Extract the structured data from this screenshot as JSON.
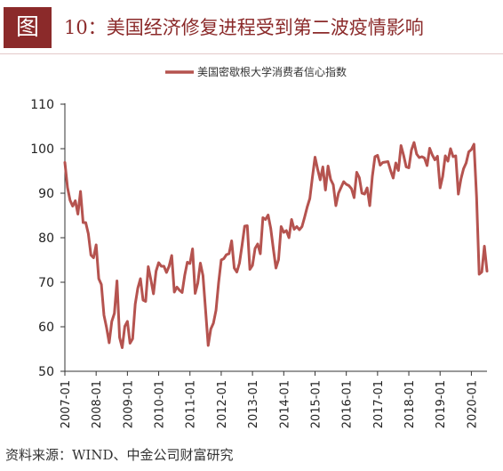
{
  "header": {
    "figure_label": "图",
    "title": "10：美国经济修复进程受到第二波疫情影响"
  },
  "source": "资料来源：WIND、中金公司财富研究",
  "colors": {
    "line": "#b5534f",
    "accent": "#8b2a2a",
    "axis": "#333333"
  },
  "chart_data": {
    "type": "line",
    "title": "",
    "xlabel": "",
    "ylabel": "",
    "ylim": [
      50,
      110
    ],
    "yticks": [
      50,
      60,
      70,
      80,
      90,
      100,
      110
    ],
    "xlim": [
      "2007-01",
      "2020-07"
    ],
    "xticks": [
      "2007-01",
      "2008-01",
      "2009-01",
      "2010-01",
      "2011-01",
      "2012-01",
      "2013-01",
      "2014-01",
      "2015-01",
      "2016-01",
      "2017-01",
      "2018-01",
      "2019-01",
      "2020-01"
    ],
    "grid": false,
    "legend": "top-center",
    "series": [
      {
        "name": "美国密歇根大学消费者信心指数",
        "x": [
          "2007-01",
          "2007-02",
          "2007-03",
          "2007-04",
          "2007-05",
          "2007-06",
          "2007-07",
          "2007-08",
          "2007-09",
          "2007-10",
          "2007-11",
          "2007-12",
          "2008-01",
          "2008-02",
          "2008-03",
          "2008-04",
          "2008-05",
          "2008-06",
          "2008-07",
          "2008-08",
          "2008-09",
          "2008-10",
          "2008-11",
          "2008-12",
          "2009-01",
          "2009-02",
          "2009-03",
          "2009-04",
          "2009-05",
          "2009-06",
          "2009-07",
          "2009-08",
          "2009-09",
          "2009-10",
          "2009-11",
          "2009-12",
          "2010-01",
          "2010-02",
          "2010-03",
          "2010-04",
          "2010-05",
          "2010-06",
          "2010-07",
          "2010-08",
          "2010-09",
          "2010-10",
          "2010-11",
          "2010-12",
          "2011-01",
          "2011-02",
          "2011-03",
          "2011-04",
          "2011-05",
          "2011-06",
          "2011-07",
          "2011-08",
          "2011-09",
          "2011-10",
          "2011-11",
          "2011-12",
          "2012-01",
          "2012-02",
          "2012-03",
          "2012-04",
          "2012-05",
          "2012-06",
          "2012-07",
          "2012-08",
          "2012-09",
          "2012-10",
          "2012-11",
          "2012-12",
          "2013-01",
          "2013-02",
          "2013-03",
          "2013-04",
          "2013-05",
          "2013-06",
          "2013-07",
          "2013-08",
          "2013-09",
          "2013-10",
          "2013-11",
          "2013-12",
          "2014-01",
          "2014-02",
          "2014-03",
          "2014-04",
          "2014-05",
          "2014-06",
          "2014-07",
          "2014-08",
          "2014-09",
          "2014-10",
          "2014-11",
          "2014-12",
          "2015-01",
          "2015-02",
          "2015-03",
          "2015-04",
          "2015-05",
          "2015-06",
          "2015-07",
          "2015-08",
          "2015-09",
          "2015-10",
          "2015-11",
          "2015-12",
          "2016-01",
          "2016-02",
          "2016-03",
          "2016-04",
          "2016-05",
          "2016-06",
          "2016-07",
          "2016-08",
          "2016-09",
          "2016-10",
          "2016-11",
          "2016-12",
          "2017-01",
          "2017-02",
          "2017-03",
          "2017-04",
          "2017-05",
          "2017-06",
          "2017-07",
          "2017-08",
          "2017-09",
          "2017-10",
          "2017-11",
          "2017-12",
          "2018-01",
          "2018-02",
          "2018-03",
          "2018-04",
          "2018-05",
          "2018-06",
          "2018-07",
          "2018-08",
          "2018-09",
          "2018-10",
          "2018-11",
          "2018-12",
          "2019-01",
          "2019-02",
          "2019-03",
          "2019-04",
          "2019-05",
          "2019-06",
          "2019-07",
          "2019-08",
          "2019-09",
          "2019-10",
          "2019-11",
          "2019-12",
          "2020-01",
          "2020-02",
          "2020-03",
          "2020-04",
          "2020-05",
          "2020-06",
          "2020-07"
        ],
        "values": [
          96.9,
          91.3,
          88.4,
          87.1,
          88.3,
          85.3,
          90.4,
          83.4,
          83.4,
          80.9,
          76.1,
          75.5,
          78.4,
          70.8,
          69.5,
          62.6,
          59.8,
          56.4,
          61.2,
          63.0,
          70.3,
          57.6,
          55.3,
          60.1,
          61.2,
          56.3,
          57.3,
          65.1,
          68.7,
          70.8,
          66.0,
          65.7,
          73.5,
          70.6,
          67.4,
          72.5,
          74.4,
          73.6,
          73.6,
          72.2,
          73.6,
          76.0,
          67.8,
          68.9,
          68.2,
          67.7,
          71.6,
          74.5,
          74.2,
          77.5,
          67.5,
          69.8,
          74.3,
          71.5,
          63.7,
          55.8,
          59.5,
          60.8,
          63.7,
          69.9,
          75.0,
          75.3,
          76.2,
          76.4,
          79.3,
          73.2,
          72.3,
          74.3,
          78.3,
          82.6,
          82.7,
          72.9,
          73.8,
          77.6,
          78.6,
          76.4,
          84.5,
          84.1,
          85.1,
          82.1,
          77.5,
          73.2,
          75.1,
          82.5,
          81.2,
          81.6,
          80.0,
          84.1,
          81.9,
          82.5,
          81.8,
          82.5,
          84.6,
          86.9,
          88.8,
          93.6,
          98.1,
          95.4,
          93.0,
          95.9,
          90.7,
          96.1,
          93.1,
          91.9,
          87.2,
          90.0,
          91.3,
          92.6,
          92.0,
          91.7,
          91.0,
          89.0,
          94.7,
          93.5,
          90.0,
          89.8,
          91.2,
          87.2,
          93.8,
          98.2,
          98.5,
          96.3,
          96.9,
          97.0,
          97.1,
          95.1,
          93.4,
          96.8,
          95.1,
          100.7,
          98.5,
          95.9,
          95.7,
          99.7,
          101.4,
          98.8,
          98.0,
          98.2,
          97.9,
          96.2,
          100.1,
          98.6,
          97.5,
          98.3,
          91.2,
          93.8,
          98.4,
          97.2,
          100.0,
          98.2,
          98.4,
          89.8,
          93.2,
          95.5,
          96.8,
          99.3,
          99.8,
          101.0,
          89.1,
          71.8,
          72.3,
          78.1,
          72.5
        ]
      }
    ]
  }
}
